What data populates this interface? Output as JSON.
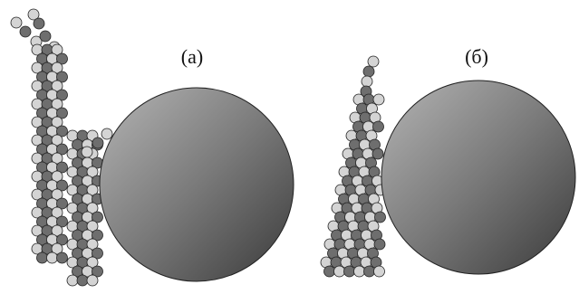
{
  "panels": [
    {
      "label": "(а)"
    },
    {
      "label": "(б)"
    }
  ]
}
